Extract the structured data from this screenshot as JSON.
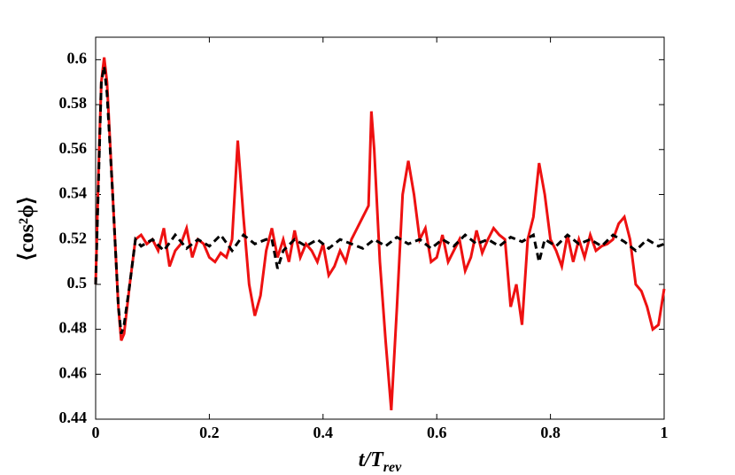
{
  "chart_data": {
    "type": "line",
    "xlabel": "t/T",
    "xlabel_sub": "rev",
    "ylabel": "⟨cos²ϕ⟩",
    "xlim": [
      0,
      1
    ],
    "xticks": [
      0,
      0.2,
      0.4,
      0.6,
      0.8,
      1
    ],
    "ylim": [
      0.44,
      0.61
    ],
    "yticks": [
      0.44,
      0.46,
      0.48,
      0.5,
      0.52,
      0.54,
      0.56,
      0.58,
      0.6
    ],
    "series": [
      {
        "color": "#ee1111",
        "dash": "solid",
        "x": [
          0,
          0.005,
          0.01,
          0.015,
          0.02,
          0.03,
          0.04,
          0.045,
          0.05,
          0.06,
          0.07,
          0.08,
          0.09,
          0.1,
          0.11,
          0.12,
          0.13,
          0.14,
          0.15,
          0.16,
          0.17,
          0.18,
          0.19,
          0.2,
          0.21,
          0.22,
          0.23,
          0.24,
          0.25,
          0.26,
          0.27,
          0.28,
          0.29,
          0.3,
          0.31,
          0.32,
          0.33,
          0.34,
          0.35,
          0.36,
          0.37,
          0.38,
          0.39,
          0.4,
          0.41,
          0.42,
          0.43,
          0.44,
          0.45,
          0.46,
          0.47,
          0.48,
          0.485,
          0.49,
          0.5,
          0.51,
          0.52,
          0.53,
          0.54,
          0.55,
          0.56,
          0.57,
          0.58,
          0.59,
          0.6,
          0.61,
          0.62,
          0.63,
          0.64,
          0.65,
          0.66,
          0.67,
          0.68,
          0.69,
          0.7,
          0.71,
          0.72,
          0.73,
          0.74,
          0.75,
          0.76,
          0.77,
          0.78,
          0.79,
          0.8,
          0.81,
          0.82,
          0.83,
          0.84,
          0.85,
          0.86,
          0.87,
          0.88,
          0.89,
          0.9,
          0.91,
          0.92,
          0.93,
          0.94,
          0.95,
          0.96,
          0.97,
          0.98,
          0.99,
          1
        ],
        "values": [
          0.5,
          0.55,
          0.59,
          0.601,
          0.59,
          0.54,
          0.49,
          0.475,
          0.478,
          0.5,
          0.52,
          0.522,
          0.518,
          0.52,
          0.515,
          0.525,
          0.508,
          0.515,
          0.518,
          0.525,
          0.512,
          0.52,
          0.518,
          0.512,
          0.51,
          0.514,
          0.512,
          0.52,
          0.564,
          0.53,
          0.5,
          0.486,
          0.495,
          0.515,
          0.525,
          0.512,
          0.52,
          0.51,
          0.524,
          0.512,
          0.518,
          0.515,
          0.51,
          0.518,
          0.504,
          0.508,
          0.515,
          0.51,
          0.52,
          0.525,
          0.53,
          0.535,
          0.577,
          0.56,
          0.51,
          0.475,
          0.444,
          0.49,
          0.54,
          0.555,
          0.54,
          0.52,
          0.525,
          0.51,
          0.512,
          0.522,
          0.51,
          0.515,
          0.52,
          0.506,
          0.512,
          0.524,
          0.514,
          0.52,
          0.525,
          0.522,
          0.52,
          0.49,
          0.5,
          0.482,
          0.52,
          0.53,
          0.554,
          0.54,
          0.52,
          0.515,
          0.508,
          0.522,
          0.51,
          0.52,
          0.512,
          0.522,
          0.515,
          0.517,
          0.518,
          0.52,
          0.527,
          0.53,
          0.52,
          0.5,
          0.497,
          0.49,
          0.48,
          0.482,
          0.498
        ]
      },
      {
        "color": "#000000",
        "dash": "dashed",
        "x": [
          0,
          0.01,
          0.015,
          0.02,
          0.03,
          0.04,
          0.045,
          0.05,
          0.06,
          0.07,
          0.08,
          0.1,
          0.12,
          0.14,
          0.16,
          0.18,
          0.2,
          0.22,
          0.24,
          0.26,
          0.28,
          0.3,
          0.31,
          0.32,
          0.33,
          0.35,
          0.37,
          0.39,
          0.41,
          0.43,
          0.45,
          0.47,
          0.49,
          0.51,
          0.53,
          0.55,
          0.57,
          0.59,
          0.61,
          0.63,
          0.65,
          0.67,
          0.69,
          0.71,
          0.73,
          0.75,
          0.77,
          0.78,
          0.79,
          0.81,
          0.83,
          0.85,
          0.87,
          0.89,
          0.91,
          0.93,
          0.95,
          0.97,
          0.99,
          1
        ],
        "values": [
          0.5,
          0.59,
          0.597,
          0.585,
          0.54,
          0.49,
          0.478,
          0.482,
          0.5,
          0.52,
          0.517,
          0.52,
          0.515,
          0.522,
          0.516,
          0.52,
          0.517,
          0.522,
          0.515,
          0.522,
          0.518,
          0.52,
          0.52,
          0.507,
          0.515,
          0.52,
          0.517,
          0.52,
          0.516,
          0.52,
          0.518,
          0.516,
          0.52,
          0.517,
          0.521,
          0.518,
          0.52,
          0.516,
          0.52,
          0.517,
          0.522,
          0.518,
          0.52,
          0.517,
          0.521,
          0.519,
          0.522,
          0.51,
          0.52,
          0.517,
          0.522,
          0.518,
          0.52,
          0.517,
          0.522,
          0.519,
          0.515,
          0.52,
          0.517,
          0.518
        ]
      }
    ]
  }
}
